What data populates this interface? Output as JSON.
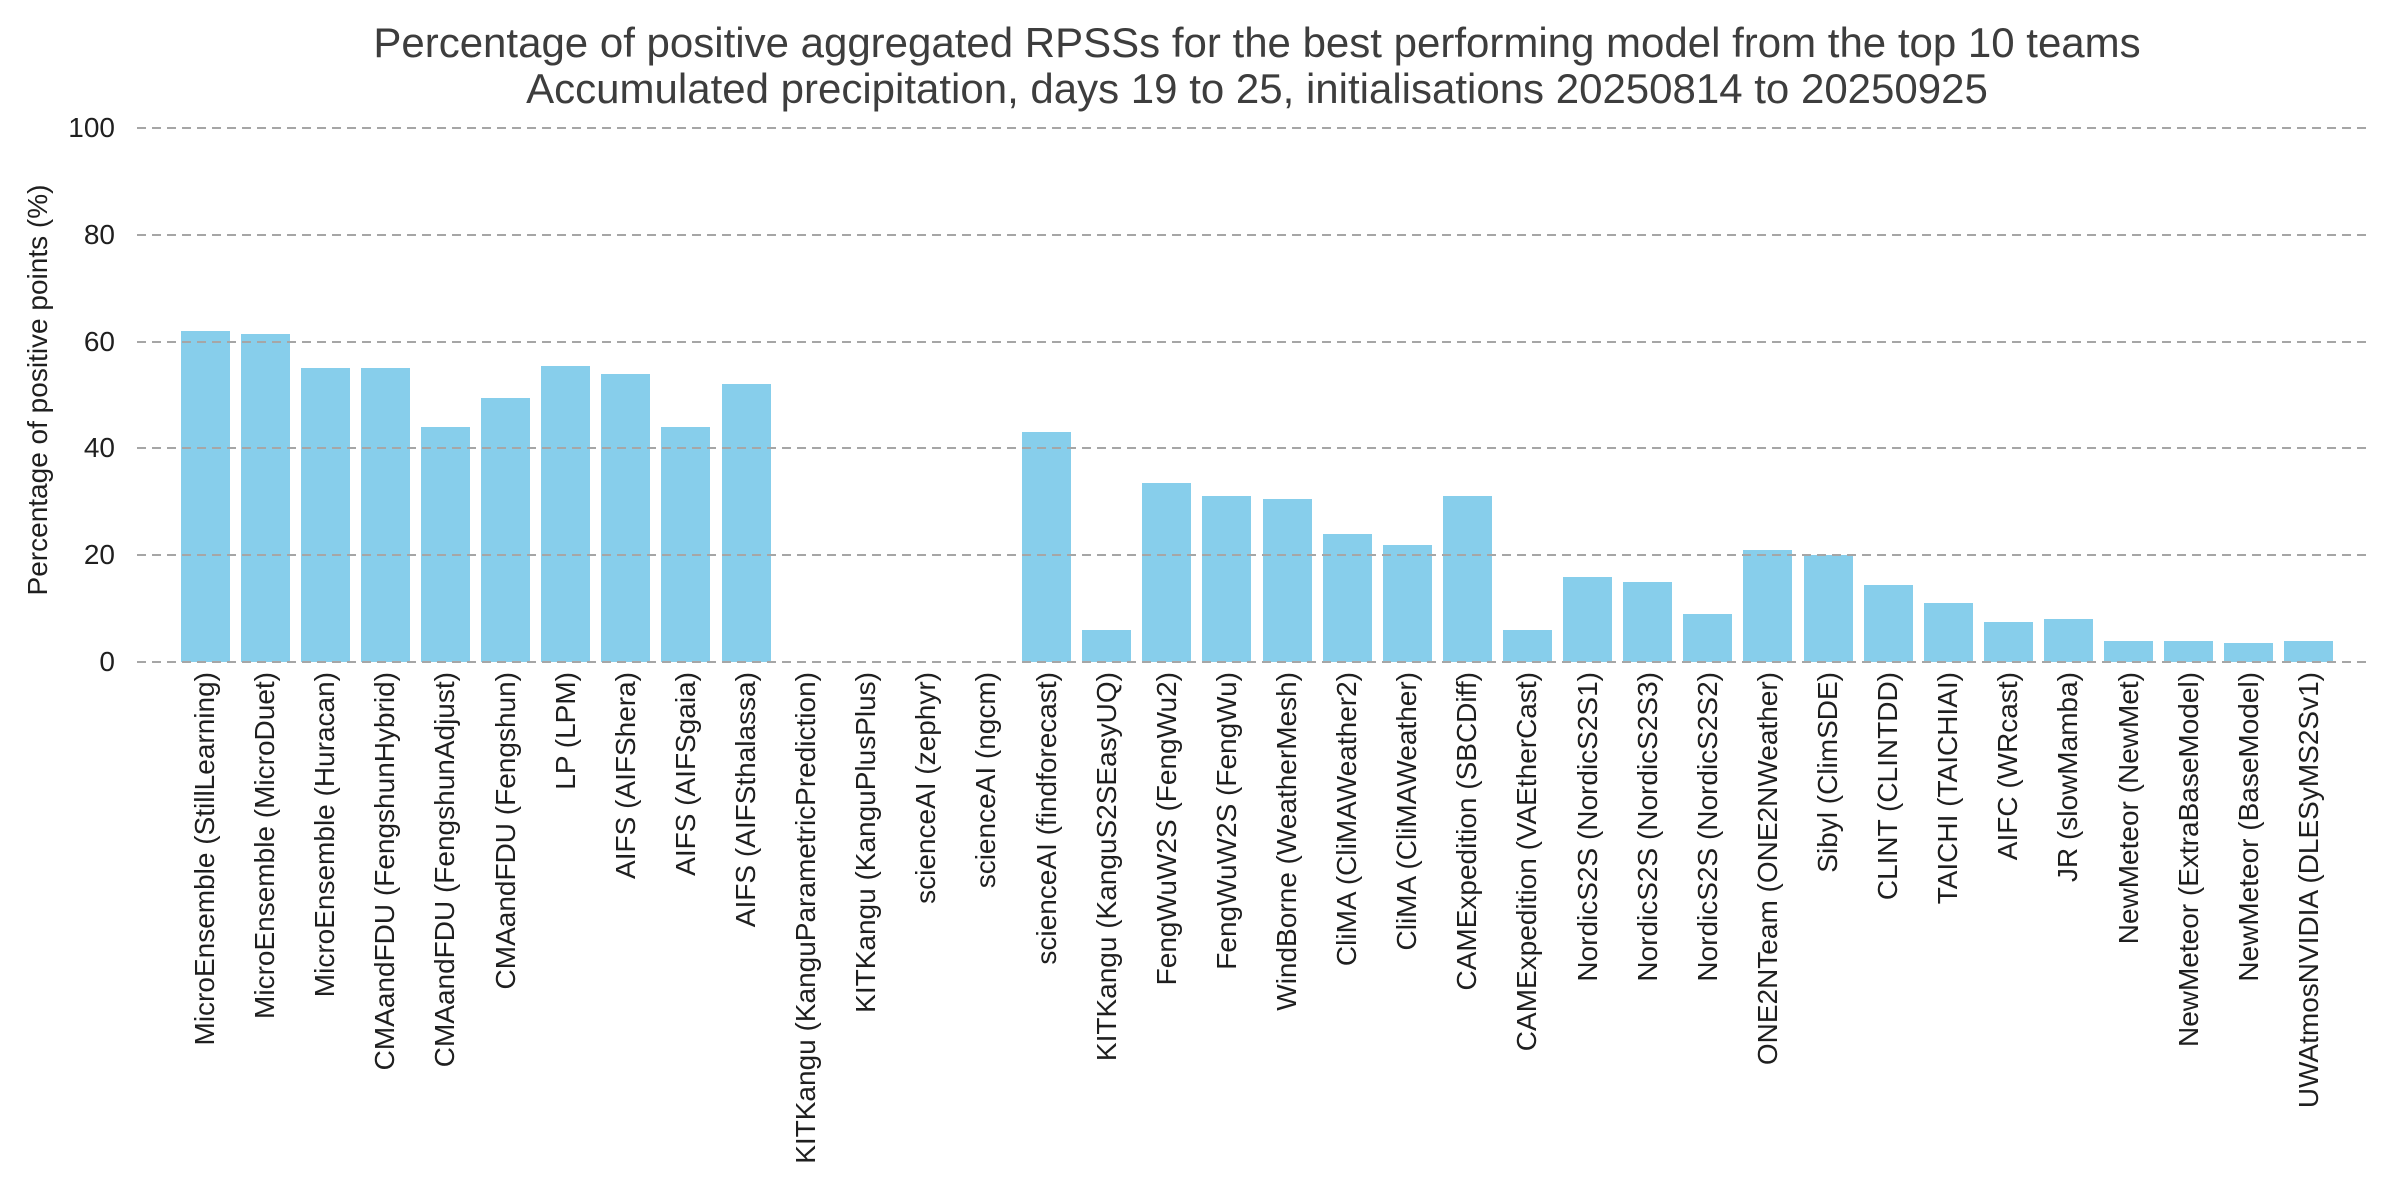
{
  "title": {
    "line1": "Percentage of positive aggregated RPSSs for the best performing model from the top 10 teams",
    "line2": "Accumulated precipitation, days 19 to 25, initialisations 20250814 to 20250925"
  },
  "y_axis": {
    "label": "Percentage of positive points (%)",
    "ticks": [
      0,
      20,
      40,
      60,
      80,
      100
    ]
  },
  "colors": {
    "bar": "#87CEEB",
    "gridline": "#a6a6a6",
    "title_text": "#3d3d3d",
    "axis_text": "#1f1f1f",
    "background": "#ffffff"
  },
  "chart_data": {
    "type": "bar",
    "title": "Percentage of positive aggregated RPSSs for the best performing model from the top 10 teams",
    "subtitle": "Accumulated precipitation, days 19 to 25, initialisations 20250814 to 20250925",
    "xlabel": "",
    "ylabel": "Percentage of positive points (%)",
    "ylim": [
      0,
      100
    ],
    "yticks": [
      0,
      20,
      40,
      60,
      80,
      100
    ],
    "grid": "horizontal-dashed, drawn above bars",
    "legend": "none",
    "bar_color": "#87CEEB",
    "categories": [
      "MicroEnsemble (StillLearning)",
      "MicroEnsemble (MicroDuet)",
      "MicroEnsemble (Huracan)",
      "CMAandFDU (FengshunHybrid)",
      "CMAandFDU (FengshunAdjust)",
      "CMAandFDU (Fengshun)",
      "LP (LPM)",
      "AIFS (AIFShera)",
      "AIFS (AIFSgaia)",
      "AIFS (AIFSthalassa)",
      "KITKangu (KanguParametricPrediction)",
      "KITKangu (KanguPlusPlus)",
      "scienceAI (zephyr)",
      "scienceAI (ngcm)",
      "scienceAI (findforecast)",
      "KITKangu (KanguS2SEasyUQ)",
      "FengWuW2S (FengWu2)",
      "FengWuW2S (FengWu)",
      "WindBorne (WeatherMesh)",
      "CliMA (CliMAWeather2)",
      "CliMA (CliMAWeather)",
      "CAMExpedition (SBCDiff)",
      "CAMExpedition (VAEtherCast)",
      "NordicS2S (NordicS2S1)",
      "NordicS2S (NordicS2S3)",
      "NordicS2S (NordicS2S2)",
      "ONE2NTeam (ONE2NWeather)",
      "Sibyl (ClimSDE)",
      "CLINT (CLINTDD)",
      "TAICHI (TAICHIAI)",
      "AIFC (WRcast)",
      "JR (slowMamba)",
      "NewMeteor (NewMet)",
      "NewMeteor (ExtraBaseModel)",
      "NewMeteor (BaseModel)",
      "UWAtmosNVIDIA (DLESyMS2Sv1)"
    ],
    "values": [
      62,
      61.5,
      55,
      55,
      44,
      49.5,
      55.5,
      54,
      44,
      52,
      0,
      0,
      0,
      0,
      43,
      6,
      33.5,
      31,
      30.5,
      24,
      22,
      31,
      6,
      16,
      15,
      9,
      21,
      20,
      14.5,
      11,
      7.5,
      8,
      4,
      4,
      3.5,
      4
    ]
  }
}
